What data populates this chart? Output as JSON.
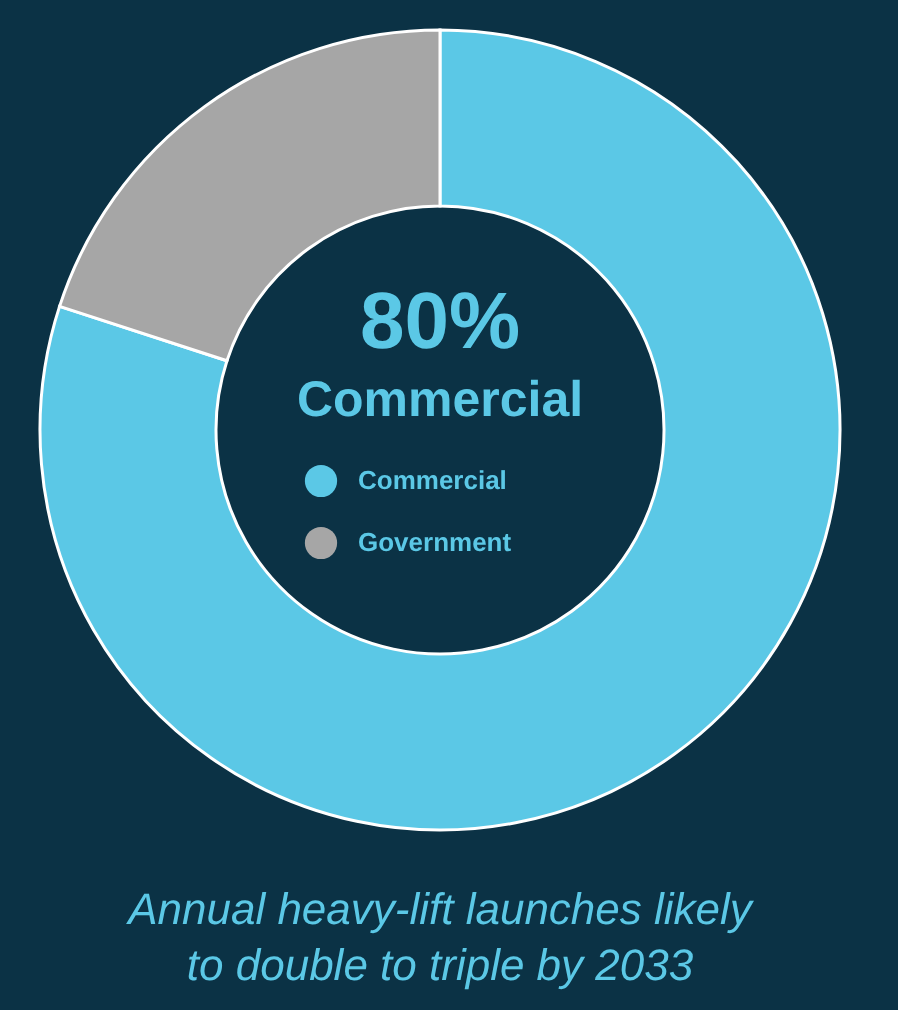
{
  "chart_data": {
    "type": "donut",
    "categories": [
      "Commercial",
      "Government"
    ],
    "values": [
      80,
      20
    ],
    "colors": [
      "#5bc8e6",
      "#a6a6a6"
    ],
    "legend": "center",
    "annotations": [
      "80%",
      "Commercial",
      "Annual heavy-lift launches likely to double to triple by 2033"
    ]
  }
}
